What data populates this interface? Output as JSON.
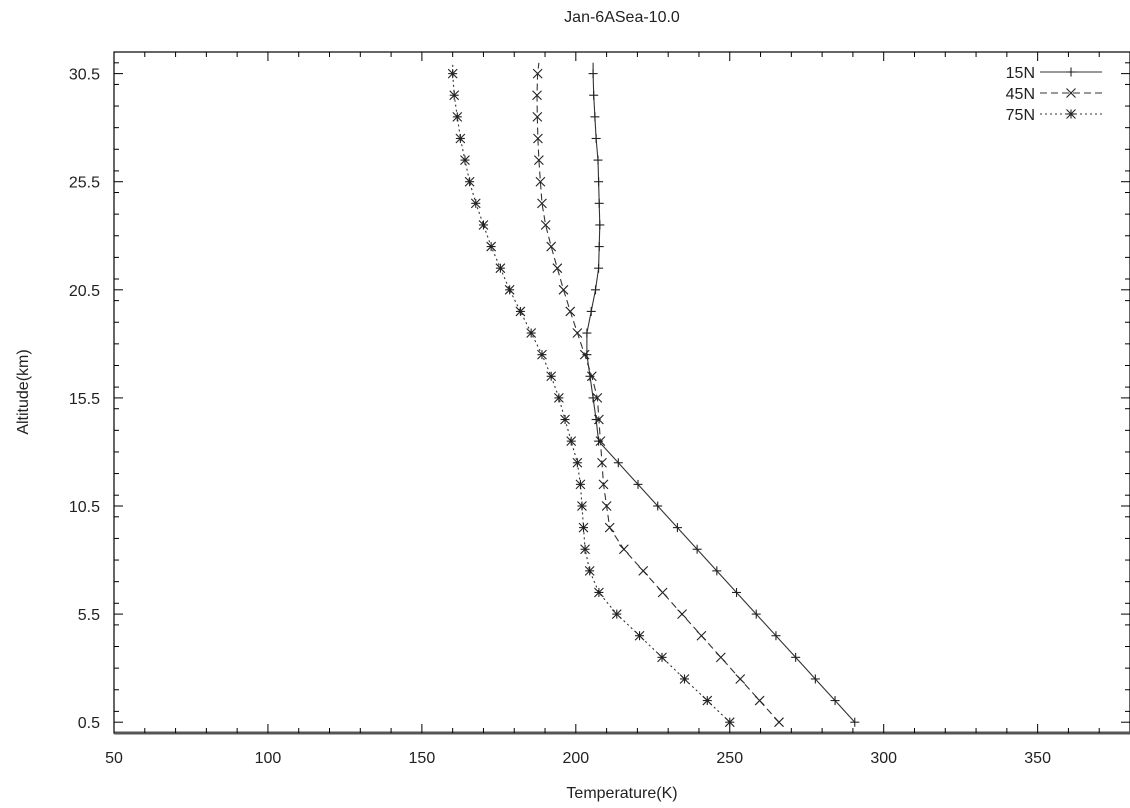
{
  "chart_data": {
    "type": "line",
    "title": "Jan-6ASea-10.0",
    "xlabel": "Temperature(K)",
    "ylabel": "Altitude(km)",
    "xlim": [
      50,
      380
    ],
    "ylim": [
      0,
      31.5
    ],
    "xticks": [
      50,
      100,
      150,
      200,
      250,
      300,
      350
    ],
    "yticks": [
      0.5,
      5.5,
      10.5,
      15.5,
      20.5,
      25.5,
      30.5
    ],
    "xtick_labels": [
      "50",
      "100",
      "150",
      "200",
      "250",
      "300",
      "350"
    ],
    "ytick_labels": [
      "0.5",
      "5.5",
      "10.5",
      "15.5",
      "20.5",
      "25.5",
      "30.5"
    ],
    "grid": false,
    "legend_position": "top-right",
    "y": [
      0.5,
      1.5,
      2.5,
      3.5,
      4.5,
      5.5,
      6.5,
      7.5,
      8.5,
      9.5,
      10.5,
      11.5,
      12.5,
      13.5,
      14.5,
      15.5,
      16.5,
      17.5,
      18.5,
      19.5,
      20.5,
      21.5,
      22.5,
      23.5,
      24.5,
      25.5,
      26.5,
      27.5,
      28.5,
      29.5,
      30.5,
      31.0
    ],
    "series": [
      {
        "name": "15N",
        "marker": "plus",
        "dash": "",
        "x": [
          290.6,
          284.2,
          277.8,
          271.4,
          265.0,
          258.6,
          252.2,
          245.8,
          239.4,
          233.0,
          226.6,
          220.2,
          213.8,
          207.4,
          206.6,
          205.6,
          204.6,
          203.6,
          203.6,
          205.0,
          206.4,
          207.4,
          207.6,
          207.8,
          207.6,
          207.4,
          207.2,
          206.6,
          206.2,
          205.8,
          205.6,
          205.6
        ]
      },
      {
        "name": "45N",
        "marker": "x",
        "dash": "7,4",
        "x": [
          266.0,
          259.7,
          253.4,
          247.1,
          240.8,
          234.5,
          228.2,
          221.9,
          215.6,
          211.0,
          210.0,
          209.0,
          208.5,
          208.0,
          207.5,
          207.0,
          205.2,
          202.9,
          200.5,
          198.2,
          196.0,
          194.0,
          192.0,
          190.2,
          189.0,
          188.5,
          188.0,
          187.7,
          187.5,
          187.4,
          187.6,
          188.0
        ]
      },
      {
        "name": "75N",
        "marker": "star",
        "dash": "2,3",
        "x": [
          250.0,
          242.7,
          235.3,
          228.0,
          220.7,
          213.3,
          207.5,
          204.5,
          203.0,
          202.5,
          202.0,
          201.5,
          200.5,
          198.5,
          196.5,
          194.5,
          192.0,
          189.0,
          185.5,
          182.0,
          178.5,
          175.5,
          172.5,
          170.0,
          167.5,
          165.5,
          164.0,
          162.5,
          161.5,
          160.5,
          160.0,
          160.0
        ]
      }
    ]
  }
}
